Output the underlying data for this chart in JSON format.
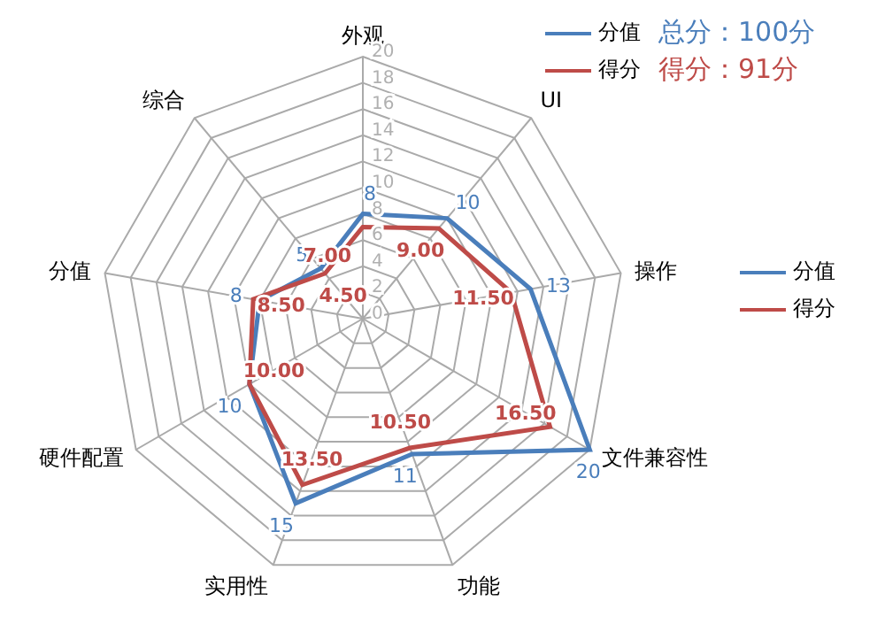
{
  "chart_data": {
    "type": "radar",
    "categories": [
      "外观",
      "UI",
      "操作",
      "文件兼容性",
      "功能",
      "实用性",
      "硬件配置",
      "分值",
      "综合"
    ],
    "series": [
      {
        "name": "分值",
        "color": "#4a7ebb",
        "values": [
          8,
          10,
          13,
          20,
          11,
          15,
          10,
          8,
          5
        ],
        "value_labels": [
          "8",
          "10",
          "13",
          "20",
          "11",
          "15",
          "10",
          "8",
          "5"
        ]
      },
      {
        "name": "得分",
        "color": "#be4b48",
        "values": [
          7,
          9,
          11.5,
          16.5,
          10.5,
          13.5,
          10,
          8.5,
          4.5
        ],
        "value_labels": [
          "7.00",
          "9.00",
          "11.50",
          "16.50",
          "10.50",
          "13.50",
          "10.00",
          "8.50",
          "4.50"
        ]
      }
    ],
    "ylim": [
      0,
      20
    ],
    "yticks": [
      0,
      2,
      4,
      6,
      8,
      10,
      12,
      14,
      16,
      18,
      20
    ],
    "grid": true,
    "legend": "top right",
    "annotations": [
      "总分：100分",
      "得分：91分"
    ]
  }
}
